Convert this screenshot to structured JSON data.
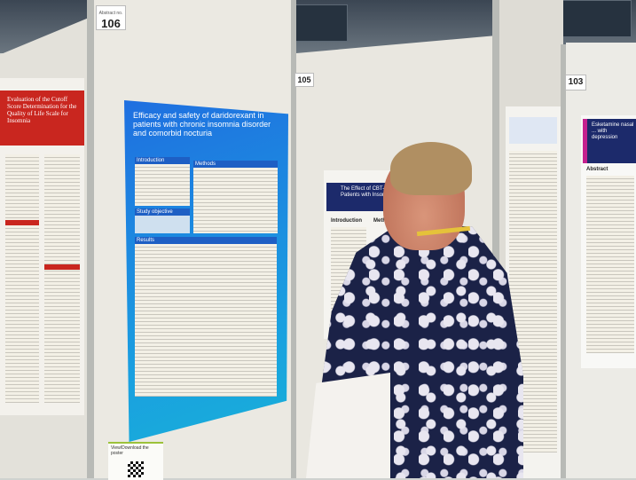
{
  "boards": {
    "left_number": "106",
    "left_label": "Abstract no.",
    "center_number": "105",
    "right_number": "103"
  },
  "main_poster": {
    "title": "Efficacy and safety of daridorexant in patients with chronic insomnia disorder and comorbid nocturia",
    "sections": [
      "Introduction",
      "Methods",
      "Study objective",
      "Results"
    ]
  },
  "left_poster": {
    "title": "Evaluation of the Cutoff Score Determination for the Quality of Life Scale for Insomnia"
  },
  "center_poster": {
    "title": "The Effect of CBT-I on ... Patients with Insomnia",
    "sections": [
      "Introduction",
      "Methods"
    ]
  },
  "right_poster": {
    "title": "Esketamine nasal ... with depression",
    "sections": [
      "Abstract"
    ]
  },
  "qr_card": {
    "text": "View/Download the poster"
  },
  "colors": {
    "poster_blue": "#1f6fe0",
    "left_poster_red": "#c9261f",
    "navy": "#1c2a6b",
    "shirt": "#1b2247"
  }
}
